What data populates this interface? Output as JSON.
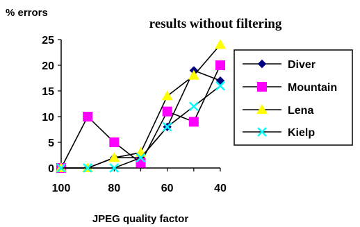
{
  "chart_data": {
    "type": "line",
    "title": "results without filtering",
    "ylabel": "% errors",
    "xlabel": "JPEG quality factor",
    "x": [
      100,
      90,
      80,
      70,
      60,
      50,
      40
    ],
    "x_tick_labels": [
      "100",
      "80",
      "60",
      "40"
    ],
    "x_tick_values": [
      100,
      80,
      60,
      40
    ],
    "x_reversed": true,
    "xlim": [
      100,
      40
    ],
    "ylim": [
      0,
      25
    ],
    "y_ticks": [
      0,
      5,
      10,
      15,
      20,
      25
    ],
    "grid": false,
    "legend_position": "right",
    "series": [
      {
        "name": "Diver",
        "values": [
          0,
          0,
          2,
          2,
          8,
          19,
          17
        ],
        "color": "#000080",
        "marker": "diamond"
      },
      {
        "name": "Mountain",
        "values": [
          0,
          10,
          5,
          1,
          11,
          9,
          20
        ],
        "color": "#ff00ff",
        "marker": "square"
      },
      {
        "name": "Lena",
        "values": [
          0,
          0,
          2,
          3,
          14,
          18,
          24
        ],
        "color": "#ffff00",
        "marker": "triangle"
      },
      {
        "name": "Kielp",
        "values": [
          0,
          0,
          0,
          2,
          8,
          12,
          16
        ],
        "color": "#00ffff",
        "marker": "x"
      }
    ]
  }
}
